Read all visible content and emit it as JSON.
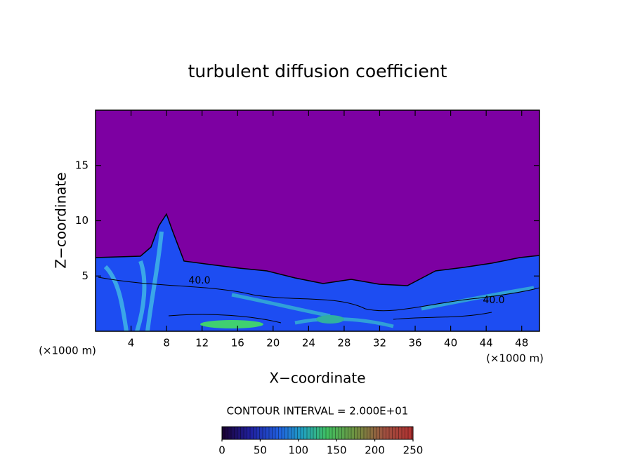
{
  "chart_data": {
    "type": "contour",
    "title": "turbulent diffusion coefficient",
    "x_label": "X−coordinate",
    "y_label": "Z−coordinate",
    "x_unit_labels": [
      "(×1000 m)",
      "(×1000 m)"
    ],
    "xlim": [
      0,
      50
    ],
    "xticks": [
      4,
      8,
      12,
      16,
      20,
      24,
      28,
      32,
      36,
      40,
      44,
      48
    ],
    "ylim": [
      0,
      20
    ],
    "yticks": [
      5,
      10,
      15
    ],
    "contour_labels": [
      "40.0",
      "40.0"
    ],
    "contour_interval_text": "CONTOUR INTERVAL = 2.000E+01",
    "colorbar": {
      "lim": [
        0,
        250
      ],
      "ticks": [
        0,
        50,
        100,
        150,
        200,
        250
      ]
    }
  }
}
